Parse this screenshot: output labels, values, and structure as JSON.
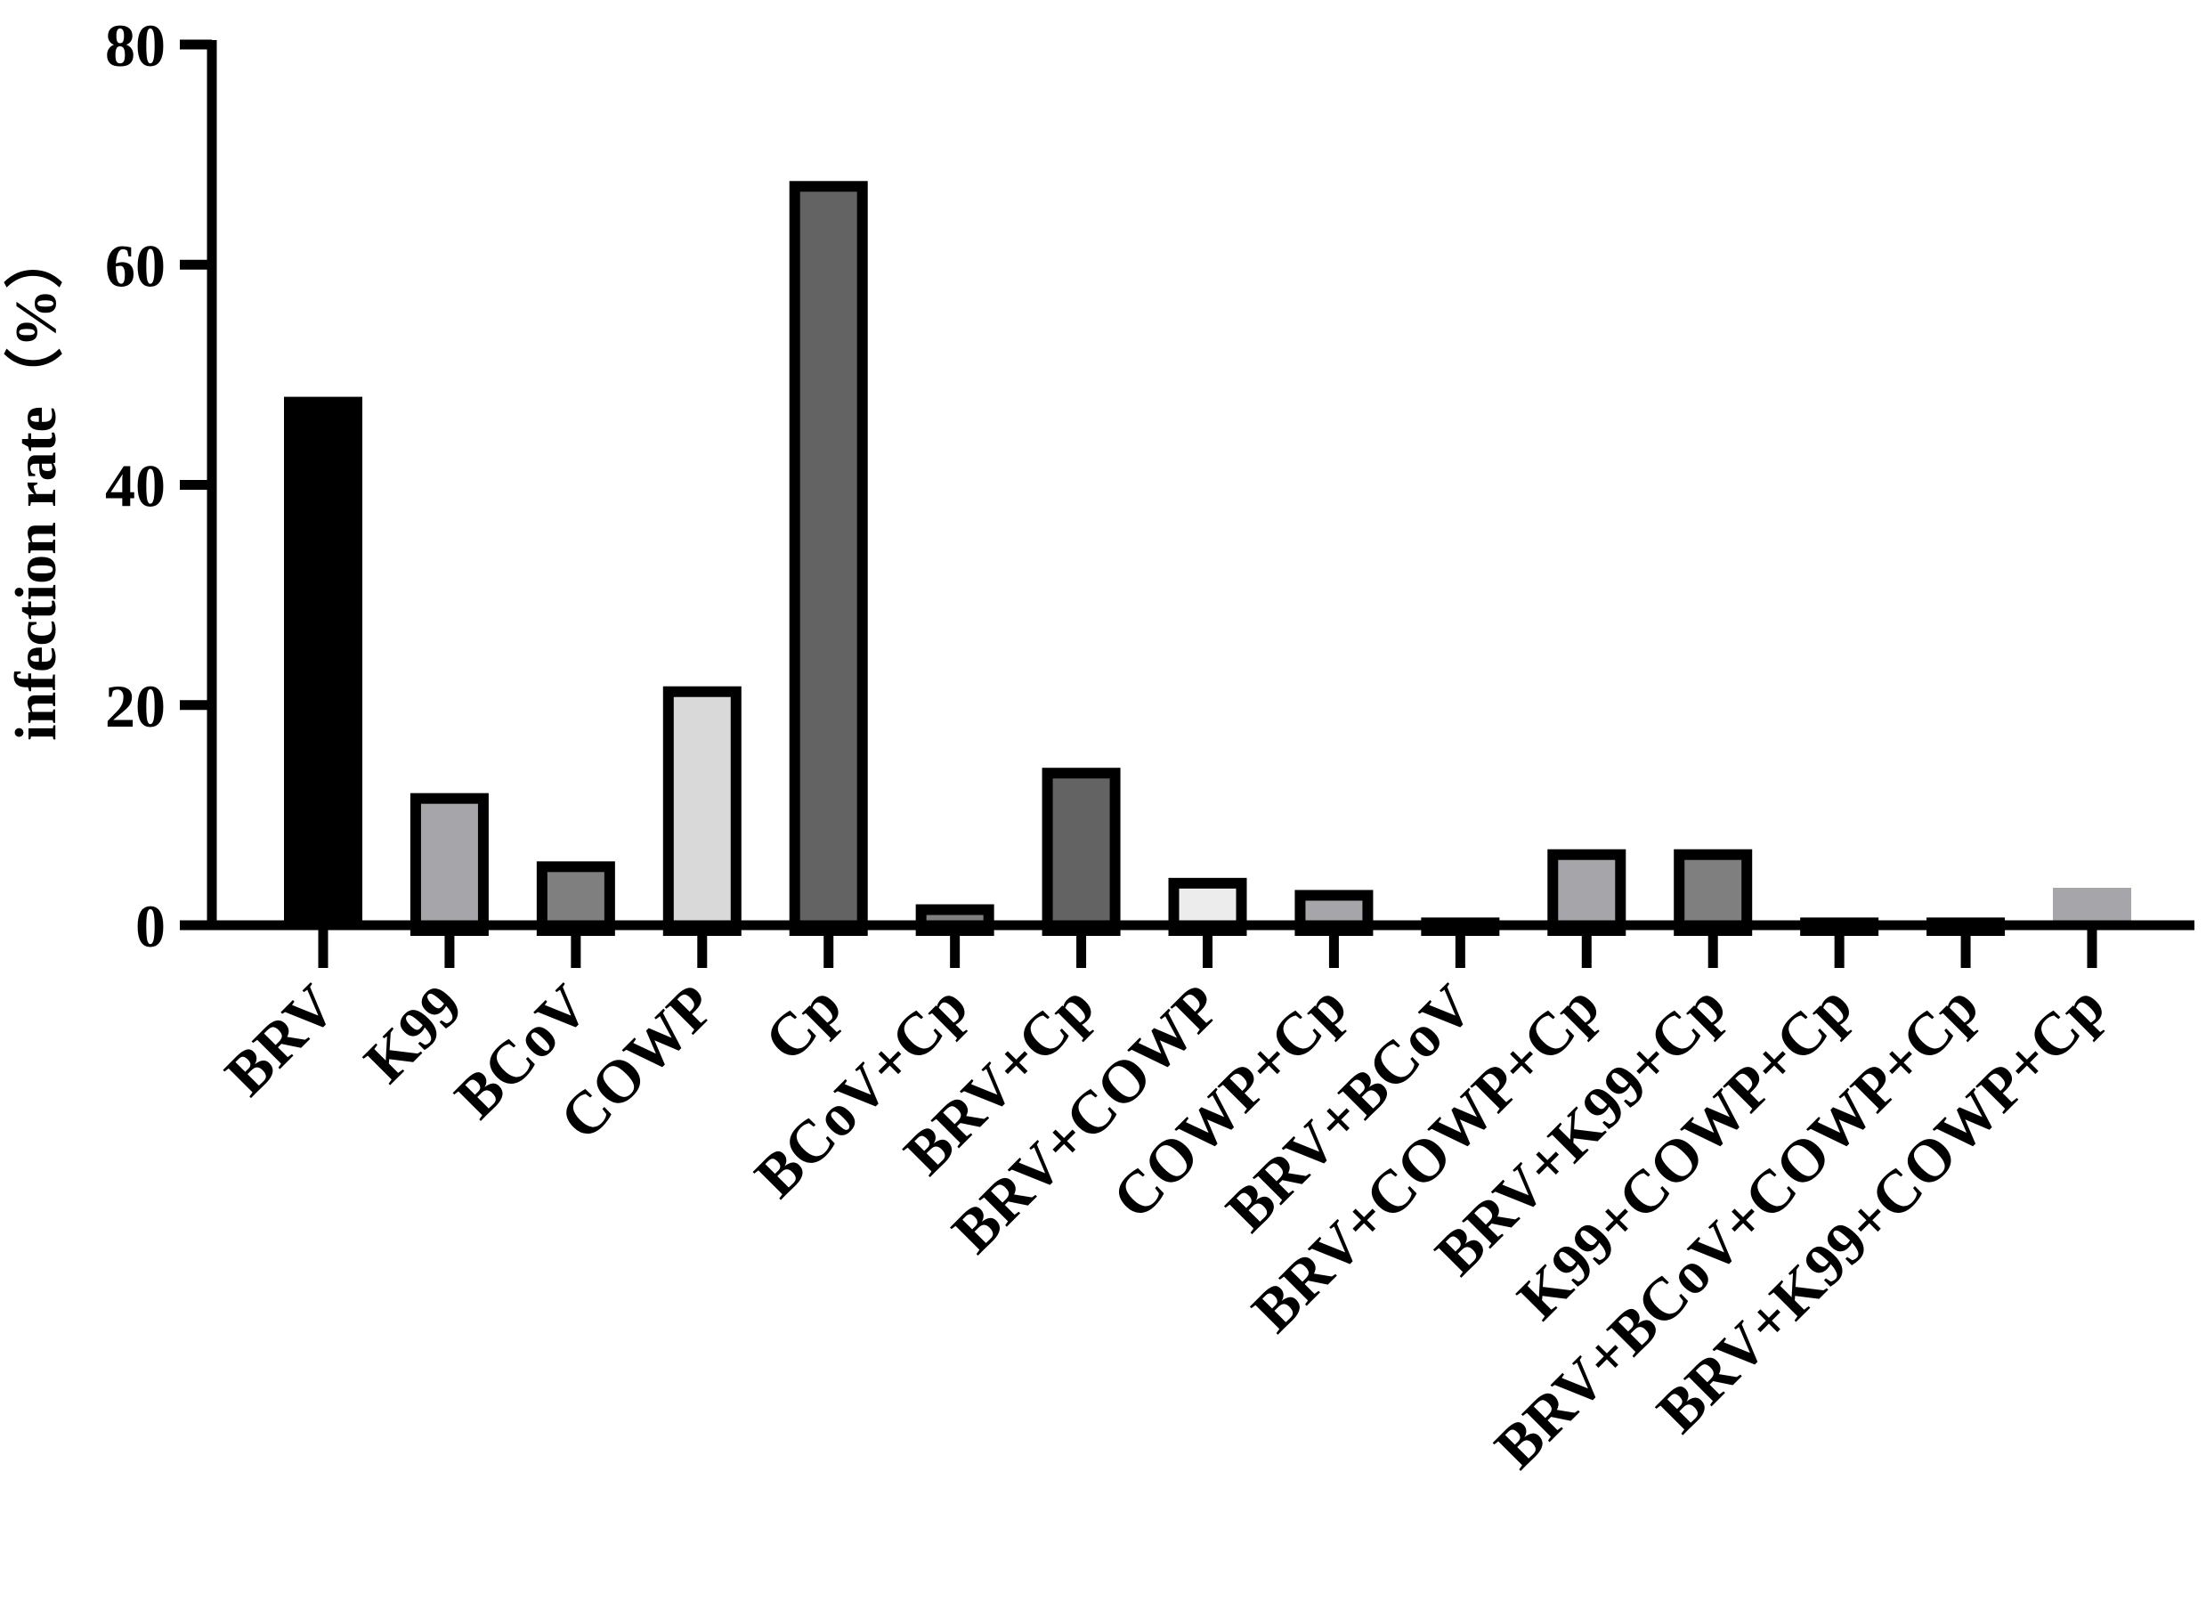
{
  "chart_data": {
    "type": "bar",
    "title": "",
    "xlabel": "",
    "ylabel": "infection rate（%）",
    "ylim": [
      0,
      80
    ],
    "yticks": [
      0,
      20,
      40,
      60,
      80
    ],
    "grid": false,
    "categories": [
      "BRV",
      "K99",
      "BCoV",
      "COWP",
      "Cp",
      "BCoV+Cp",
      "BRV+Cp",
      "BRV+COWP",
      "COWP+Cp",
      "BRV+BCoV",
      "BRV+COWP+Cp",
      "BRV+K99+Cp",
      "K99+COWP+Cp",
      "BRV+BCoV+COWP+Cp",
      "BRV+K99+COWP+Cp"
    ],
    "values": [
      48,
      12,
      5.8,
      21.7,
      67.6,
      1.9,
      14.3,
      4.3,
      3.2,
      0.7,
      6.9,
      6.9,
      0.7,
      0.7,
      3.4
    ],
    "bar_fill": [
      "#000000",
      "#a5a5aa",
      "#7f7f7f",
      "#d9d9d9",
      "#636363",
      "#7f7f7f",
      "#636363",
      "#ececec",
      "#a5a5aa",
      "#000000",
      "#a5a5aa",
      "#7f7f7f",
      "#000000",
      "#000000",
      "#a5a5aa"
    ],
    "bar_outlined": [
      false,
      true,
      true,
      true,
      true,
      true,
      true,
      true,
      true,
      true,
      true,
      true,
      true,
      true,
      false
    ]
  }
}
